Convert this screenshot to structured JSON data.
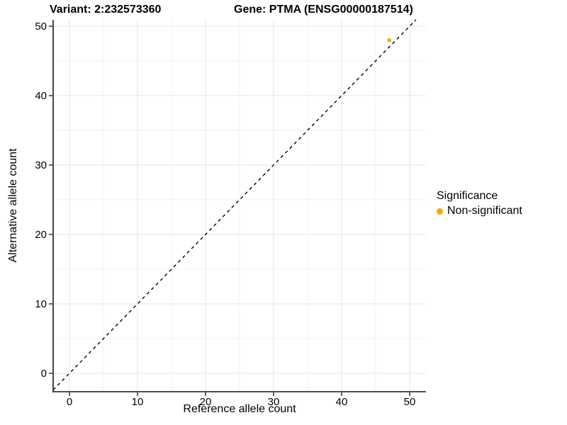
{
  "chart_data": {
    "type": "scatter",
    "title_left": "Variant: 2:232573360",
    "title_right": "Gene: PTMA (ENSG00000187514)",
    "xlabel": "Reference allele count",
    "ylabel": "Alternative allele count",
    "xlim": [
      0,
      50
    ],
    "ylim": [
      0,
      50
    ],
    "xticks": [
      0,
      10,
      20,
      30,
      40,
      50
    ],
    "yticks": [
      0,
      10,
      20,
      30,
      40,
      50
    ],
    "minor_xticks": [
      5,
      15,
      25,
      35,
      45
    ],
    "minor_yticks": [
      5,
      15,
      25,
      35,
      45
    ],
    "grid": "on",
    "identity_line": {
      "style": "dashed",
      "color": "#000000"
    },
    "series": [
      {
        "name": "Non-significant",
        "color": "#FFA500",
        "points": [
          {
            "x": 47,
            "y": 48
          }
        ]
      }
    ],
    "legend": {
      "position": "right",
      "title": "Significance",
      "items": [
        {
          "label": "Non-significant",
          "color": "#FFA500"
        }
      ]
    },
    "colors": {
      "gridline_major": "#E4E4E4",
      "gridline_minor": "#F1F1F1",
      "axis_line": "#333333",
      "tick_label": "#000000"
    }
  }
}
